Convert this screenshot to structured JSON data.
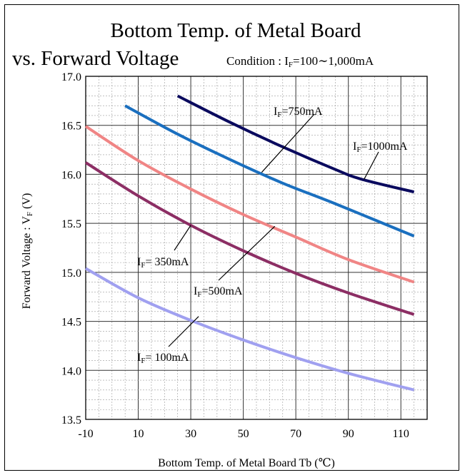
{
  "chart_data": {
    "type": "line",
    "title_line1": "Bottom Temp. of Metal Board",
    "title_line2": "vs. Forward Voltage",
    "condition": {
      "prefix": "Condition : ",
      "var": "I",
      "sub": "F",
      "value": "=100∼1,000mA"
    },
    "xlabel": "Bottom Temp. of Metal Board Tb (℃)",
    "ylabel": {
      "main": "Forward Voltage : V",
      "sub": "F",
      "unit": " (V)"
    },
    "xlim": [
      -10,
      120
    ],
    "ylim": [
      13.5,
      17.0
    ],
    "x_ticks": [
      -10,
      10,
      30,
      50,
      70,
      90,
      110
    ],
    "x_tick_labels": [
      "-10",
      "10",
      "30",
      "50",
      "70",
      "90",
      "110"
    ],
    "y_ticks": [
      13.5,
      14.0,
      14.5,
      15.0,
      15.5,
      16.0,
      16.5,
      17.0
    ],
    "y_tick_labels": [
      "13.5",
      "14.0",
      "14.5",
      "15.0",
      "15.5",
      "16.0",
      "16.5",
      "17.0"
    ],
    "grid": true,
    "series": [
      {
        "name": "IF=1000mA",
        "color": "#0a0a5e",
        "x": [
          25,
          45,
          65,
          85,
          95,
          115
        ],
        "y": [
          16.8,
          16.53,
          16.28,
          16.05,
          15.95,
          15.82
        ]
      },
      {
        "name": "IF=750mA",
        "color": "#1a6fbf",
        "x": [
          5,
          25,
          45,
          65,
          85,
          115
        ],
        "y": [
          16.7,
          16.41,
          16.15,
          15.91,
          15.7,
          15.37
        ]
      },
      {
        "name": "IF=500mA",
        "color": "#f08585",
        "x": [
          -10,
          10,
          30,
          50,
          70,
          90,
          115
        ],
        "y": [
          16.49,
          16.14,
          15.85,
          15.59,
          15.36,
          15.13,
          14.9
        ]
      },
      {
        "name": "IF=350mA",
        "color": "#8c2e64",
        "x": [
          -10,
          10,
          30,
          50,
          70,
          90,
          115
        ],
        "y": [
          16.12,
          15.78,
          15.48,
          15.22,
          14.99,
          14.79,
          14.57
        ]
      },
      {
        "name": "IF=100mA",
        "color": "#a0a0f0",
        "x": [
          -10,
          10,
          30,
          50,
          70,
          90,
          115
        ],
        "y": [
          15.04,
          14.74,
          14.51,
          14.31,
          14.13,
          13.97,
          13.8
        ]
      }
    ],
    "annotations": [
      {
        "var": "I",
        "sub": "F",
        "text": "=750mA",
        "target": [
          57,
          16.02
        ]
      },
      {
        "var": "I",
        "sub": "F",
        "text": "=1000mA",
        "target": [
          96,
          15.95
        ]
      },
      {
        "var": "I",
        "sub": "F",
        "text": "= 350mA",
        "target": [
          30,
          15.48
        ]
      },
      {
        "var": "I",
        "sub": "F",
        "text": "=500mA",
        "target": [
          62,
          15.47
        ]
      },
      {
        "var": "I",
        "sub": "F",
        "text": "= 100mA",
        "target": [
          33,
          14.55
        ]
      }
    ]
  }
}
